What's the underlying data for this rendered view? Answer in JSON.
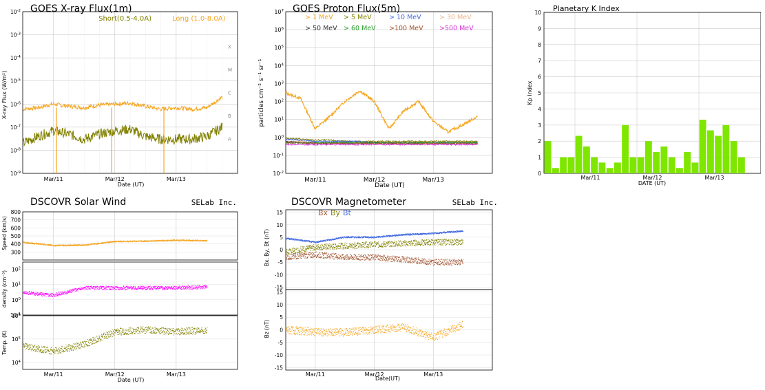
{
  "xray": {
    "title": "GOES X-ray Flux(1m)",
    "legend_short": "Short(0.5-4.0A)",
    "legend_long": "Long (1.0-8.0A)",
    "ylabel": "X-ray Flux (W/m²)",
    "xlabel": "Date (UT)",
    "yticks": [
      {
        "b": "10",
        "e": "-2"
      },
      {
        "b": "10",
        "e": "-3"
      },
      {
        "b": "10",
        "e": "-4"
      },
      {
        "b": "10",
        "e": "-5"
      },
      {
        "b": "10",
        "e": "-6"
      },
      {
        "b": "10",
        "e": "-7"
      },
      {
        "b": "10",
        "e": "-8"
      },
      {
        "b": "10",
        "e": "-9"
      }
    ],
    "classes": [
      "X",
      "M",
      "C",
      "B",
      "A"
    ],
    "xticks": [
      "Mar/11",
      "Mar/12",
      "Mar/13"
    ],
    "colors": {
      "long": "#f5a623",
      "short": "#808000"
    }
  },
  "proton": {
    "title": "GOES Proton Flux(5m)",
    "ylabel": "particles cm⁻² s⁻¹ sr⁻¹",
    "xlabel": "Date (UT)",
    "yticks": [
      {
        "b": "10",
        "e": "7"
      },
      {
        "b": "10",
        "e": "6"
      },
      {
        "b": "10",
        "e": "5"
      },
      {
        "b": "10",
        "e": "4"
      },
      {
        "b": "10",
        "e": "3"
      },
      {
        "b": "10",
        "e": "2"
      },
      {
        "b": "10",
        "e": "1"
      },
      {
        "b": "10",
        "e": "0"
      },
      {
        "b": "10",
        "e": "-1"
      },
      {
        "b": "10",
        "e": "-2"
      }
    ],
    "xticks": [
      "Mar/11",
      "Mar/12",
      "Mar/13"
    ],
    "legend": [
      {
        "label": "> 1 MeV",
        "color": "#f5a623"
      },
      {
        "label": "> 5 MeV",
        "color": "#808000"
      },
      {
        "label": "> 10 MeV",
        "color": "#4169e1"
      },
      {
        "label": "> 30 MeV",
        "color": "#e8b48c"
      },
      {
        "label": "> 50 MeV",
        "color": "#333333"
      },
      {
        "label": "> 60 MeV",
        "color": "#2ca02c"
      },
      {
        "label": ">100 MeV",
        "color": "#a0522d"
      },
      {
        "label": ">500 MeV",
        "color": "#d633d6"
      }
    ]
  },
  "kp": {
    "title": "Planetary K Index",
    "ylabel": "Kp Index",
    "xlabel": "DATE (UT)",
    "xticks": [
      "Mar/11",
      "Mar/12",
      "Mar/13"
    ],
    "color": "#7fe600"
  },
  "solarwind": {
    "title": "DSCOVR Solar Wind",
    "brand": "SELab Inc.",
    "speed_label": "Speed (km/s)",
    "speed_ticks": [
      "800",
      "700",
      "600",
      "500",
      "400",
      "300"
    ],
    "density_label": "density (cm⁻³)",
    "density_ticks": [
      {
        "b": "10",
        "e": "2"
      },
      {
        "b": "10",
        "e": "1"
      },
      {
        "b": "10",
        "e": "0"
      },
      {
        "b": "10",
        "e": "-1"
      }
    ],
    "temp_label": "Temp. (K)",
    "temp_ticks": [
      {
        "b": "10",
        "e": "6"
      },
      {
        "b": "10",
        "e": "5"
      },
      {
        "b": "10",
        "e": "4"
      }
    ],
    "xticks": [
      "Mar/11",
      "Mar/12",
      "Mar/13"
    ],
    "xlabel": "Date (UT)",
    "colors": {
      "speed": "#f5a623",
      "density": "#ff00ff",
      "temp": "#808000"
    }
  },
  "mag": {
    "title": "DSCOVR Magnetometer",
    "brand": "SELab Inc.",
    "legend": [
      {
        "label": "Bx",
        "color": "#a0522d"
      },
      {
        "label": "By",
        "color": "#808000"
      },
      {
        "label": "Bt",
        "color": "#4169e1"
      }
    ],
    "top_label": "Bx, By, Bt (nT)",
    "bottom_label": "Bz (nT)",
    "ticks": [
      "15",
      "10",
      "5",
      "0",
      "-5",
      "-10",
      "-15"
    ],
    "xticks": [
      "Mar/11",
      "Mar/12",
      "Mar/13"
    ],
    "xlabel": "Date(UT)",
    "bz_color": "#f5a623"
  },
  "chart_data": [
    {
      "type": "line",
      "title": "GOES X-ray Flux(1m)",
      "ylabel": "X-ray Flux (W/m²)",
      "xlabel": "Date (UT)",
      "yscale": "log",
      "ylim": [
        1e-09,
        0.01
      ],
      "xlim": [
        "Mar/10 12:00",
        "Mar/14 00:00"
      ],
      "x": [
        "Mar/10 12:00",
        "Mar/10 18:00",
        "Mar/11 00:00",
        "Mar/11 06:00",
        "Mar/11 12:00",
        "Mar/11 18:00",
        "Mar/12 00:00",
        "Mar/12 06:00",
        "Mar/12 12:00",
        "Mar/12 18:00",
        "Mar/13 00:00",
        "Mar/13 06:00",
        "Mar/13 12:00",
        "Mar/13 18:00"
      ],
      "series": [
        {
          "name": "Long (1.0-8.0A)",
          "values": [
            6e-07,
            7e-07,
            1e-06,
            8e-07,
            7e-07,
            9e-07,
            1e-06,
            1.1e-06,
            8e-07,
            6e-07,
            7e-07,
            6e-07,
            7e-07,
            2e-06
          ]
        },
        {
          "name": "Short(0.5-4.0A)",
          "values": [
            2e-08,
            4e-08,
            7e-08,
            5e-08,
            3e-08,
            5e-08,
            7e-08,
            8e-08,
            4e-08,
            3e-08,
            3e-08,
            3e-08,
            4e-08,
            1e-07
          ]
        }
      ],
      "class_labels": [
        "X",
        "M",
        "C",
        "B",
        "A"
      ],
      "grid": true
    },
    {
      "type": "line",
      "title": "GOES Proton Flux(5m)",
      "ylabel": "particles cm⁻² s⁻¹ sr⁻¹",
      "xlabel": "Date (UT)",
      "yscale": "log",
      "ylim": [
        0.01,
        10000000.0
      ],
      "xlim": [
        "Mar/10 12:00",
        "Mar/14 00:00"
      ],
      "x": [
        "Mar/10 12:00",
        "Mar/10 18:00",
        "Mar/11 00:00",
        "Mar/11 06:00",
        "Mar/11 12:00",
        "Mar/11 18:00",
        "Mar/12 00:00",
        "Mar/12 06:00",
        "Mar/12 12:00",
        "Mar/12 18:00",
        "Mar/13 00:00",
        "Mar/13 06:00",
        "Mar/13 12:00",
        "Mar/13 18:00"
      ],
      "series": [
        {
          "name": "> 1 MeV",
          "values": [
            300,
            150,
            3,
            15,
            100,
            400,
            100,
            3,
            30,
            100,
            8,
            2,
            5,
            15
          ]
        },
        {
          "name": "> 5 MeV",
          "values": [
            0.9,
            0.8,
            0.7,
            0.7,
            0.6,
            0.6,
            0.6,
            0.6,
            0.6,
            0.6,
            0.6,
            0.6,
            0.6,
            0.6
          ]
        },
        {
          "name": "> 10 MeV",
          "values": [
            0.8,
            0.7,
            0.6,
            0.6,
            0.6,
            0.6,
            0.5,
            0.5,
            0.5,
            0.5,
            0.5,
            0.5,
            0.5,
            0.5
          ]
        },
        {
          "name": "> 30 MeV",
          "values": [
            0.6,
            0.6,
            0.5,
            0.5,
            0.5,
            0.5,
            0.5,
            0.5,
            0.5,
            0.5,
            0.5,
            0.5,
            0.5,
            0.5
          ]
        },
        {
          "name": "> 50 MeV",
          "values": [
            0.6,
            0.5,
            0.5,
            0.5,
            0.5,
            0.5,
            0.5,
            0.5,
            0.5,
            0.5,
            0.5,
            0.5,
            0.5,
            0.5
          ]
        },
        {
          "name": "> 60 MeV",
          "values": [
            0.5,
            0.5,
            0.5,
            0.5,
            0.5,
            0.5,
            0.5,
            0.5,
            0.5,
            0.5,
            0.5,
            0.5,
            0.5,
            0.5
          ]
        },
        {
          "name": ">100 MeV",
          "values": [
            0.5,
            0.5,
            0.45,
            0.45,
            0.45,
            0.45,
            0.45,
            0.45,
            0.45,
            0.45,
            0.45,
            0.45,
            0.45,
            0.45
          ]
        },
        {
          "name": ">500 MeV",
          "values": [
            0.4,
            0.4,
            0.4,
            0.4,
            0.4,
            0.4,
            0.4,
            0.4,
            0.4,
            0.4,
            0.4,
            0.4,
            0.4,
            0.4
          ]
        }
      ],
      "grid": true
    },
    {
      "type": "bar",
      "title": "Planetary K Index",
      "ylabel": "Kp Index",
      "xlabel": "DATE (UT)",
      "ylim": [
        0,
        10
      ],
      "categories": [
        "Mar/10 12:00",
        "Mar/10 15:00",
        "Mar/10 18:00",
        "Mar/10 21:00",
        "Mar/11 00:00",
        "Mar/11 03:00",
        "Mar/11 06:00",
        "Mar/11 09:00",
        "Mar/11 12:00",
        "Mar/11 15:00",
        "Mar/11 18:00",
        "Mar/11 21:00",
        "Mar/12 00:00",
        "Mar/12 03:00",
        "Mar/12 06:00",
        "Mar/12 09:00",
        "Mar/12 12:00",
        "Mar/12 15:00",
        "Mar/12 18:00",
        "Mar/12 21:00",
        "Mar/13 00:00",
        "Mar/13 03:00",
        "Mar/13 06:00",
        "Mar/13 09:00",
        "Mar/13 12:00",
        "Mar/13 15:00"
      ],
      "values": [
        2,
        0.33,
        1,
        1,
        2.33,
        1.67,
        1,
        0.67,
        0.33,
        0.67,
        3,
        1,
        1,
        2,
        1.33,
        1.67,
        1,
        0.33,
        1.33,
        0.67,
        3.33,
        2.67,
        2.33,
        3,
        2,
        1
      ],
      "grid": true
    },
    {
      "type": "scatter",
      "title": "DSCOVR Solar Wind",
      "panels": [
        {
          "name": "Speed (km/s)",
          "ylim": [
            200,
            800
          ],
          "x": [
            "Mar/10 12:00",
            "Mar/11 00:00",
            "Mar/11 12:00",
            "Mar/12 00:00",
            "Mar/12 12:00",
            "Mar/13 00:00",
            "Mar/13 12:00"
          ],
          "values": [
            420,
            380,
            385,
            430,
            435,
            445,
            440
          ]
        },
        {
          "name": "density (cm⁻³)",
          "yscale": "log",
          "ylim": [
            0.1,
            300
          ],
          "x": [
            "Mar/10 12:00",
            "Mar/11 00:00",
            "Mar/11 12:00",
            "Mar/12 00:00",
            "Mar/12 12:00",
            "Mar/13 00:00",
            "Mar/13 12:00"
          ],
          "values": [
            3,
            2,
            6,
            6,
            6,
            6,
            7
          ]
        },
        {
          "name": "Temp. (K)",
          "yscale": "log",
          "ylim": [
            5000,
            1000000.0
          ],
          "x": [
            "Mar/10 12:00",
            "Mar/11 00:00",
            "Mar/11 12:00",
            "Mar/12 00:00",
            "Mar/12 12:00",
            "Mar/13 00:00",
            "Mar/13 12:00"
          ],
          "values": [
            50000,
            30000,
            60000,
            200000,
            250000,
            200000,
            250000
          ]
        }
      ],
      "xlabel": "Date (UT)",
      "grid": true
    },
    {
      "type": "scatter",
      "title": "DSCOVR Magnetometer",
      "panels": [
        {
          "name": "Bx, By, Bt (nT)",
          "ylim": [
            -16,
            16
          ],
          "x": [
            "Mar/10 12:00",
            "Mar/11 00:00",
            "Mar/11 12:00",
            "Mar/12 00:00",
            "Mar/12 12:00",
            "Mar/13 00:00",
            "Mar/13 12:00"
          ],
          "series": [
            {
              "name": "Bt",
              "values": [
                4.5,
                3,
                5,
                5,
                6,
                6.5,
                7.5
              ]
            },
            {
              "name": "By",
              "values": [
                -1,
                1,
                1.5,
                2,
                2.5,
                3,
                3
              ]
            },
            {
              "name": "Bx",
              "values": [
                -3,
                -2,
                -3,
                -3,
                -4,
                -5,
                -5
              ]
            }
          ]
        },
        {
          "name": "Bz (nT)",
          "ylim": [
            -16,
            16
          ],
          "x": [
            "Mar/10 12:00",
            "Mar/11 00:00",
            "Mar/11 12:00",
            "Mar/12 00:00",
            "Mar/12 12:00",
            "Mar/13 00:00",
            "Mar/13 12:00"
          ],
          "values": [
            0,
            -1,
            -1,
            0,
            1,
            -3,
            2
          ]
        }
      ],
      "xlabel": "Date(UT)",
      "grid": true
    }
  ]
}
